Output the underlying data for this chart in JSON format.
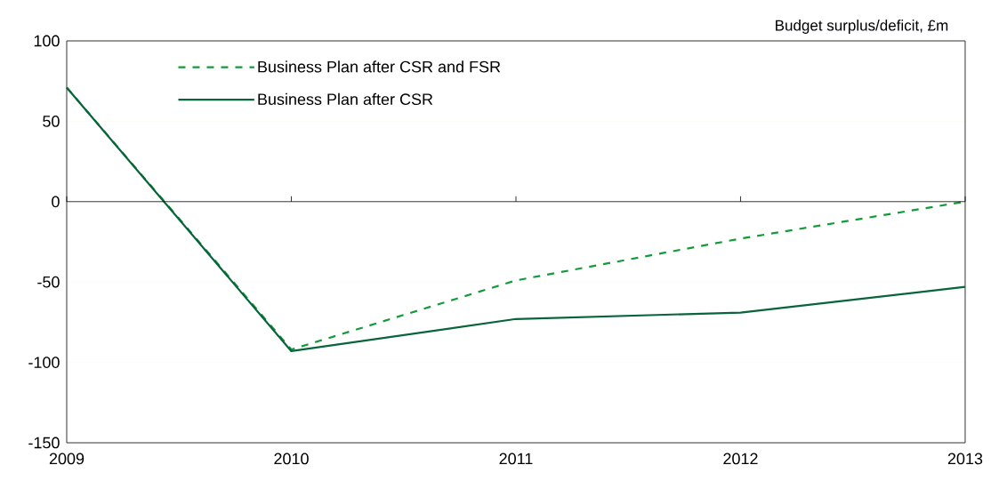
{
  "chart_data": {
    "type": "line",
    "ylabel": "Budget surplus/deficit, £m",
    "x": [
      2009,
      2010,
      2011,
      2012,
      2013
    ],
    "series": [
      {
        "name": "Business Plan after CSR and FSR",
        "color": "#139b3a",
        "line_style": "dashed",
        "values": [
          71,
          -92,
          -49,
          -23,
          0
        ]
      },
      {
        "name": "Business Plan after CSR",
        "color": "#08643a",
        "line_style": "solid",
        "values": [
          71,
          -93,
          -73,
          -69,
          -53
        ]
      }
    ],
    "xlim": [
      2009,
      2013
    ],
    "xticks": [
      2009,
      2010,
      2011,
      2012,
      2013
    ],
    "ylim": [
      -150,
      100
    ],
    "yticks": [
      -150,
      -100,
      -50,
      0,
      50,
      100
    ],
    "grid": "y",
    "legend": "top left",
    "ref_lines": [
      {
        "axis": "y",
        "value": 0,
        "color": "#000000"
      }
    ]
  }
}
